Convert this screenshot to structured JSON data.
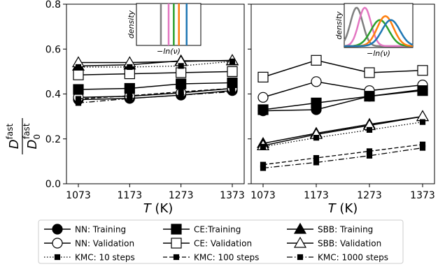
{
  "chart_data": [
    {
      "type": "line",
      "panel": "left",
      "x": [
        1073,
        1173,
        1273,
        1373
      ],
      "xlim": [
        1073,
        1373
      ],
      "ylim": [
        0.0,
        0.8
      ],
      "series": [
        {
          "key": "nn_train",
          "values": [
            0.375,
            0.38,
            0.395,
            0.415
          ]
        },
        {
          "key": "nn_val",
          "values": [
            0.385,
            0.39,
            0.405,
            0.425
          ]
        },
        {
          "key": "ce_train",
          "values": [
            0.42,
            0.425,
            0.445,
            0.45
          ]
        },
        {
          "key": "ce_val",
          "values": [
            0.485,
            0.49,
            0.495,
            0.5
          ]
        },
        {
          "key": "sbb_train",
          "values": [
            0.525,
            0.53,
            0.548,
            0.548
          ]
        },
        {
          "key": "sbb_val",
          "values": [
            0.54,
            0.54,
            0.545,
            0.55
          ]
        },
        {
          "key": "kmc_10",
          "values": [
            0.52,
            0.52,
            0.525,
            0.545
          ]
        },
        {
          "key": "kmc_100",
          "values": [
            0.378,
            0.392,
            0.41,
            0.425
          ]
        },
        {
          "key": "kmc_1000",
          "values": [
            0.36,
            0.38,
            0.395,
            0.41
          ]
        }
      ],
      "inset": {
        "type": "vlines",
        "ylabel": "density",
        "xlabel": "−ln(ν)"
      }
    },
    {
      "type": "line",
      "panel": "right",
      "x": [
        1073,
        1173,
        1273,
        1373
      ],
      "xlim": [
        1073,
        1373
      ],
      "ylim": [
        0.0,
        0.8
      ],
      "series": [
        {
          "key": "nn_train",
          "values": [
            0.325,
            0.33,
            0.39,
            0.42
          ]
        },
        {
          "key": "nn_val",
          "values": [
            0.385,
            0.455,
            0.415,
            0.44
          ]
        },
        {
          "key": "ce_train",
          "values": [
            0.33,
            0.36,
            0.39,
            0.415
          ]
        },
        {
          "key": "ce_val",
          "values": [
            0.475,
            0.55,
            0.495,
            0.505
          ]
        },
        {
          "key": "sbb_train",
          "values": [
            0.18,
            0.225,
            0.265,
            0.3
          ]
        },
        {
          "key": "sbb_val",
          "values": [
            0.17,
            0.22,
            0.26,
            0.3
          ]
        },
        {
          "key": "kmc_10",
          "values": [
            0.165,
            0.205,
            0.24,
            0.275
          ]
        },
        {
          "key": "kmc_100",
          "values": [
            0.085,
            0.115,
            0.145,
            0.175
          ]
        },
        {
          "key": "kmc_1000",
          "values": [
            0.07,
            0.095,
            0.125,
            0.16
          ]
        }
      ],
      "inset": {
        "type": "gaussians",
        "ylabel": "density",
        "xlabel": "−ln(ν)"
      }
    }
  ],
  "axes": {
    "xlabel_var": "T",
    "xlabel_unit": " (K)",
    "xticks": [
      "1073",
      "1173",
      "1273",
      "1373"
    ],
    "yticks": [
      "0.0",
      "0.2",
      "0.4",
      "0.6",
      "0.8"
    ],
    "ylabel_num_main": "D",
    "ylabel_num_sup": "fast",
    "ylabel_den_main": "D",
    "ylabel_den_sub": "0",
    "ylabel_den_sup": "fast"
  },
  "legend": [
    {
      "key": "nn_train",
      "label": "NN: Training"
    },
    {
      "key": "ce_train",
      "label": "CE:Training"
    },
    {
      "key": "sbb_train",
      "label": "SBB: Training"
    },
    {
      "key": "nn_val",
      "label": "NN: Validation"
    },
    {
      "key": "ce_val",
      "label": "CE: Validation"
    },
    {
      "key": "sbb_val",
      "label": "SBB: Validation"
    },
    {
      "key": "kmc_10",
      "label": "KMC: 10 steps"
    },
    {
      "key": "kmc_100",
      "label": "KMC: 100 steps"
    },
    {
      "key": "kmc_1000",
      "label": "KMC: 1000 steps"
    }
  ],
  "inset_colors": [
    "#7f7f7f",
    "#e377c2",
    "#2ca02c",
    "#ff7f0e",
    "#1f77b4"
  ]
}
